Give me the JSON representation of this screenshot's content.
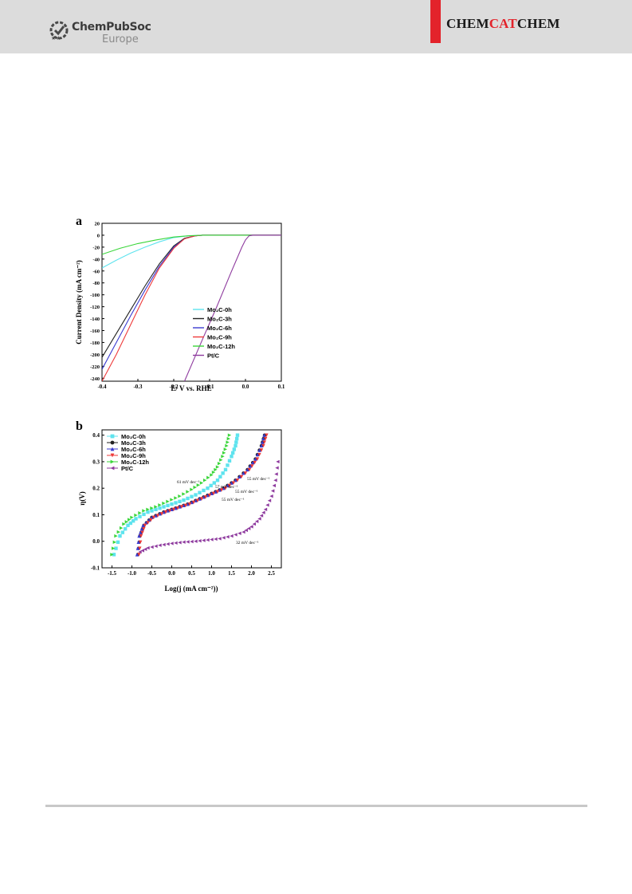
{
  "header": {
    "publisher_name": "ChemPubSoc",
    "publisher_sub": "Europe",
    "journal_pre": "CHEM",
    "journal_mid": "CAT",
    "journal_post": "CHEM"
  },
  "colors": {
    "header_bg": "#dcdcdc",
    "accent_red": "#e3232b",
    "s0h": "#5ee3ee",
    "s3h": "#222222",
    "s6h": "#3a3ad0",
    "s9h": "#ee3a3a",
    "s12h": "#3ad63a",
    "ptc": "#8e3a9e"
  },
  "chart_data": [
    {
      "panel_label": "a",
      "type": "line",
      "xlabel": "E/ V vs. RHE",
      "ylabel": "Current Density (mA cm⁻²)",
      "xlim": [
        -0.4,
        0.1
      ],
      "ylim": [
        -245,
        20
      ],
      "xticks": [
        "-0.4",
        "-0.3",
        "-0.2",
        "-0.1",
        "0.0",
        "0.1"
      ],
      "yticks": [
        "20",
        "0",
        "-20",
        "-40",
        "-60",
        "-80",
        "-100",
        "-120",
        "-140",
        "-160",
        "-180",
        "-200",
        "-220",
        "-240"
      ],
      "legend_position": "lower-right",
      "series": [
        {
          "name": "Mo₂C-0h",
          "x": [
            -0.4,
            -0.36,
            -0.32,
            -0.28,
            -0.24,
            -0.2,
            -0.16,
            -0.12,
            -0.1,
            -0.05,
            0.0,
            0.1
          ],
          "y": [
            -55,
            -42,
            -30,
            -20,
            -11,
            -4,
            -1,
            0,
            0,
            0,
            0,
            0
          ]
        },
        {
          "name": "Mo₂C-3h",
          "x": [
            -0.4,
            -0.36,
            -0.32,
            -0.28,
            -0.24,
            -0.2,
            -0.17,
            -0.14,
            -0.12,
            -0.1,
            0.0,
            0.1
          ],
          "y": [
            -205,
            -165,
            -125,
            -85,
            -48,
            -18,
            -5,
            -1,
            0,
            0,
            0,
            0
          ]
        },
        {
          "name": "Mo₂C-6h",
          "x": [
            -0.4,
            -0.36,
            -0.32,
            -0.28,
            -0.24,
            -0.2,
            -0.17,
            -0.14,
            -0.12,
            -0.1,
            0.0,
            0.1
          ],
          "y": [
            -225,
            -180,
            -135,
            -92,
            -52,
            -20,
            -6,
            -1,
            0,
            0,
            0,
            0
          ]
        },
        {
          "name": "Mo₂C-9h",
          "x": [
            -0.4,
            -0.36,
            -0.32,
            -0.28,
            -0.24,
            -0.2,
            -0.17,
            -0.14,
            -0.12,
            -0.1,
            0.0,
            0.1
          ],
          "y": [
            -245,
            -200,
            -150,
            -100,
            -55,
            -22,
            -6,
            -1,
            0,
            0,
            0,
            0
          ]
        },
        {
          "name": "Mo₂C-12h",
          "x": [
            -0.4,
            -0.35,
            -0.3,
            -0.25,
            -0.2,
            -0.16,
            -0.12,
            -0.1,
            0.0,
            0.1
          ],
          "y": [
            -32,
            -22,
            -14,
            -8,
            -3,
            -1,
            0,
            0,
            0,
            0
          ]
        },
        {
          "name": "Pt/C",
          "x": [
            -0.17,
            -0.12,
            -0.08,
            -0.04,
            -0.01,
            0.0,
            0.01,
            0.02,
            0.05,
            0.1
          ],
          "y": [
            -245,
            -175,
            -120,
            -62,
            -20,
            -8,
            -1,
            0,
            0,
            0
          ]
        }
      ]
    },
    {
      "panel_label": "b",
      "type": "scatter",
      "xlabel": "Log(j (mA cm⁻²))",
      "ylabel": "η(V)",
      "xlim": [
        -1.75,
        2.75
      ],
      "ylim": [
        -0.1,
        0.42
      ],
      "xticks": [
        "-1.5",
        "-1.0",
        "-0.5",
        "0.0",
        "0.5",
        "1.0",
        "1.5",
        "2.0",
        "2.5"
      ],
      "yticks": [
        "-0.1",
        "0.0",
        "0.1",
        "0.2",
        "0.3",
        "0.4"
      ],
      "legend_position": "top-left",
      "annotations": [
        "61 mV dec⁻¹",
        "57 mV dec⁻¹",
        "55 mV dec⁻¹",
        "55 mV dec⁻¹",
        "55 mV dec⁻¹",
        "32 mV dec⁻¹"
      ],
      "series": [
        {
          "name": "Mo₂C-0h",
          "marker": "square",
          "x": [
            -1.45,
            -1.3,
            -1.1,
            -0.9,
            -0.6,
            -0.3,
            0.0,
            0.3,
            0.6,
            0.9,
            1.15,
            1.35,
            1.5,
            1.6,
            1.65
          ],
          "y": [
            -0.05,
            0.02,
            0.06,
            0.085,
            0.11,
            0.125,
            0.14,
            0.155,
            0.175,
            0.2,
            0.23,
            0.27,
            0.32,
            0.36,
            0.4
          ]
        },
        {
          "name": "Mo₂C-3h",
          "marker": "circle",
          "x": [
            -0.85,
            -0.8,
            -0.7,
            -0.5,
            -0.2,
            0.1,
            0.4,
            0.7,
            1.0,
            1.3,
            1.6,
            1.9,
            2.1,
            2.25,
            2.33
          ],
          "y": [
            -0.05,
            0.02,
            0.06,
            0.09,
            0.11,
            0.125,
            0.14,
            0.16,
            0.18,
            0.2,
            0.23,
            0.27,
            0.31,
            0.36,
            0.4
          ]
        },
        {
          "name": "Mo₂C-6h",
          "marker": "triangle-up",
          "x": [
            -0.87,
            -0.82,
            -0.72,
            -0.5,
            -0.2,
            0.1,
            0.4,
            0.7,
            1.0,
            1.3,
            1.6,
            1.9,
            2.1,
            2.25,
            2.32
          ],
          "y": [
            -0.05,
            0.02,
            0.06,
            0.09,
            0.11,
            0.125,
            0.14,
            0.16,
            0.18,
            0.2,
            0.23,
            0.27,
            0.31,
            0.36,
            0.4
          ]
        },
        {
          "name": "Mo₂C-9h",
          "marker": "triangle-down",
          "x": [
            -0.82,
            -0.77,
            -0.67,
            -0.45,
            -0.15,
            0.15,
            0.45,
            0.75,
            1.05,
            1.35,
            1.65,
            1.95,
            2.15,
            2.3,
            2.38
          ],
          "y": [
            -0.05,
            0.02,
            0.06,
            0.09,
            0.11,
            0.125,
            0.14,
            0.16,
            0.18,
            0.2,
            0.23,
            0.27,
            0.31,
            0.36,
            0.4
          ]
        },
        {
          "name": "Mo₂C-12h",
          "marker": "triangle-right",
          "x": [
            -1.5,
            -1.4,
            -1.2,
            -1.0,
            -0.7,
            -0.4,
            -0.1,
            0.2,
            0.5,
            0.75,
            1.0,
            1.15,
            1.28,
            1.38,
            1.45
          ],
          "y": [
            -0.05,
            0.02,
            0.065,
            0.09,
            0.115,
            0.13,
            0.15,
            0.17,
            0.195,
            0.22,
            0.25,
            0.28,
            0.32,
            0.36,
            0.4
          ]
        },
        {
          "name": "Pt/C",
          "marker": "triangle-left",
          "x": [
            -0.8,
            -0.6,
            -0.3,
            0.0,
            0.3,
            0.6,
            0.9,
            1.2,
            1.5,
            1.8,
            2.0,
            2.2,
            2.35,
            2.5,
            2.6,
            2.66
          ],
          "y": [
            -0.04,
            -0.025,
            -0.015,
            -0.008,
            -0.003,
            0.0,
            0.005,
            0.01,
            0.02,
            0.035,
            0.055,
            0.085,
            0.12,
            0.17,
            0.23,
            0.3
          ]
        }
      ]
    }
  ]
}
